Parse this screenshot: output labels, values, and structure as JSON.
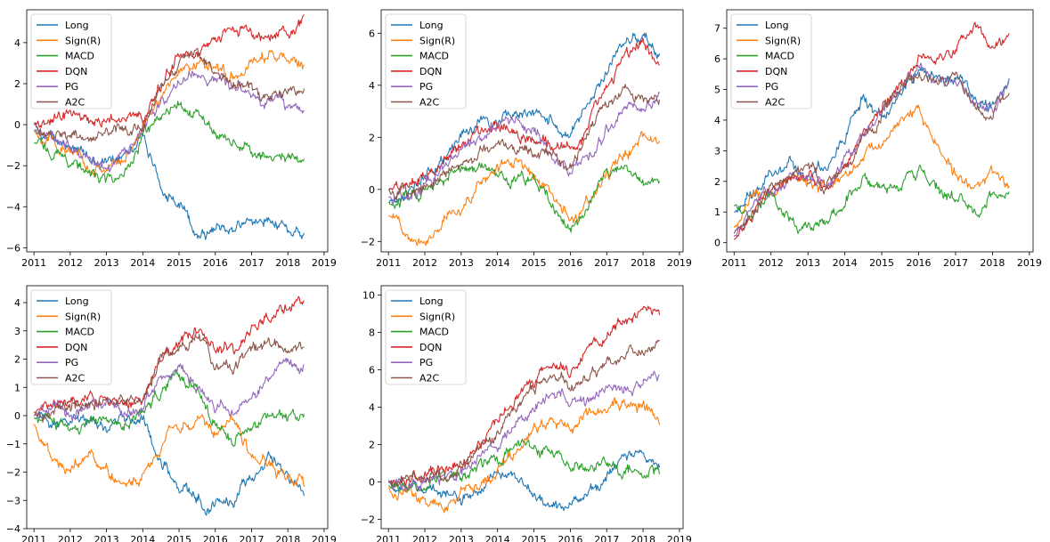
{
  "series_names": [
    "Long",
    "Sign(R)",
    "MACD",
    "DQN",
    "PG",
    "A2C"
  ],
  "colors": {
    "Long": "#1f77b4",
    "Sign(R)": "#ff7f0e",
    "MACD": "#2ca02c",
    "DQN": "#d62728",
    "PG": "#9467bd",
    "A2C": "#8c564b"
  },
  "chart_data": [
    {
      "type": "line",
      "title": "",
      "x": [
        2011.0,
        2011.5,
        2012.0,
        2012.5,
        2013.0,
        2013.5,
        2014.0,
        2014.5,
        2015.0,
        2015.5,
        2016.0,
        2016.5,
        2017.0,
        2017.5,
        2018.0,
        2018.45
      ],
      "xticks": [
        2011,
        2012,
        2013,
        2014,
        2015,
        2016,
        2017,
        2018,
        2019
      ],
      "xlim": [
        2010.8,
        2019.1
      ],
      "ylim": [
        -6.2,
        5.6
      ],
      "yticks": [
        -6,
        -4,
        -2,
        0,
        2,
        4
      ],
      "series": [
        {
          "name": "Long",
          "values": [
            -0.3,
            -0.6,
            -1.0,
            -1.6,
            -1.9,
            -1.2,
            -0.5,
            -3.0,
            -4.0,
            -5.2,
            -5.1,
            -5.0,
            -4.8,
            -4.5,
            -5.0,
            -5.5
          ]
        },
        {
          "name": "Sign(R)",
          "values": [
            -0.3,
            -0.8,
            -1.4,
            -1.9,
            -2.1,
            -1.7,
            0.0,
            1.5,
            2.6,
            3.0,
            2.8,
            2.5,
            3.0,
            3.4,
            3.2,
            2.7
          ]
        },
        {
          "name": "MACD",
          "values": [
            -0.9,
            -1.2,
            -1.8,
            -2.3,
            -2.8,
            -2.5,
            -0.7,
            0.2,
            0.8,
            0.6,
            -0.3,
            -0.8,
            -1.2,
            -1.5,
            -1.6,
            -1.5
          ]
        },
        {
          "name": "DQN",
          "values": [
            0.0,
            0.2,
            0.5,
            0.3,
            0.3,
            0.5,
            0.5,
            1.8,
            3.4,
            3.5,
            4.0,
            4.6,
            4.5,
            4.2,
            4.6,
            5.2
          ]
        },
        {
          "name": "PG",
          "values": [
            0.1,
            -0.5,
            -1.1,
            -1.7,
            -2.1,
            -1.5,
            -0.4,
            1.2,
            2.1,
            2.4,
            2.0,
            1.8,
            1.5,
            1.3,
            1.0,
            0.5
          ]
        },
        {
          "name": "A2C",
          "values": [
            0.0,
            -0.3,
            -0.4,
            -0.7,
            -0.4,
            -0.2,
            -0.1,
            1.5,
            3.0,
            3.4,
            2.6,
            2.0,
            1.8,
            1.6,
            1.3,
            1.6
          ]
        }
      ]
    },
    {
      "type": "line",
      "title": "",
      "x": [
        2011.0,
        2011.5,
        2012.0,
        2012.5,
        2013.0,
        2013.5,
        2014.0,
        2014.5,
        2015.0,
        2015.5,
        2016.0,
        2016.5,
        2017.0,
        2017.5,
        2018.0,
        2018.45
      ],
      "xticks": [
        2011,
        2012,
        2013,
        2014,
        2015,
        2016,
        2017,
        2018,
        2019
      ],
      "xlim": [
        2010.8,
        2019.1
      ],
      "ylim": [
        -2.4,
        6.9
      ],
      "yticks": [
        -2,
        0,
        2,
        4,
        6
      ],
      "series": [
        {
          "name": "Long",
          "values": [
            -0.5,
            -0.1,
            0.6,
            1.2,
            2.0,
            2.5,
            2.6,
            2.9,
            2.8,
            2.6,
            2.0,
            3.2,
            4.5,
            5.6,
            6.0,
            5.2
          ]
        },
        {
          "name": "Sign(R)",
          "values": [
            -1.0,
            -1.5,
            -1.9,
            -1.2,
            -0.6,
            0.2,
            0.8,
            1.1,
            0.5,
            -0.3,
            -1.3,
            -0.5,
            0.5,
            1.4,
            2.0,
            1.7
          ]
        },
        {
          "name": "MACD",
          "values": [
            -0.5,
            -0.3,
            -0.1,
            0.3,
            0.6,
            0.9,
            0.7,
            0.3,
            0.3,
            -0.5,
            -1.6,
            -0.5,
            0.5,
            0.6,
            0.2,
            0.3
          ]
        },
        {
          "name": "DQN",
          "values": [
            0.0,
            0.2,
            0.5,
            1.0,
            1.6,
            2.0,
            2.3,
            2.2,
            2.0,
            1.8,
            1.3,
            2.6,
            4.0,
            5.2,
            5.5,
            4.6
          ]
        },
        {
          "name": "PG",
          "values": [
            -0.3,
            -0.2,
            0.3,
            0.9,
            1.4,
            2.0,
            2.5,
            2.6,
            2.3,
            1.3,
            0.6,
            1.3,
            2.2,
            2.8,
            3.1,
            3.3
          ]
        },
        {
          "name": "A2C",
          "values": [
            0.0,
            -0.3,
            0.0,
            0.5,
            1.0,
            1.5,
            1.8,
            1.6,
            1.5,
            1.3,
            0.8,
            2.2,
            3.4,
            3.8,
            3.3,
            3.6
          ]
        }
      ]
    },
    {
      "type": "line",
      "title": "",
      "x": [
        2011.0,
        2011.5,
        2012.0,
        2012.5,
        2013.0,
        2013.5,
        2014.0,
        2014.5,
        2015.0,
        2015.5,
        2016.0,
        2016.5,
        2017.0,
        2017.5,
        2018.0,
        2018.45
      ],
      "xticks": [
        2011,
        2012,
        2013,
        2014,
        2015,
        2016,
        2017,
        2018,
        2019
      ],
      "xlim": [
        2010.8,
        2019.1
      ],
      "ylim": [
        -0.3,
        7.6
      ],
      "yticks": [
        0,
        1,
        2,
        3,
        4,
        5,
        6,
        7
      ],
      "series": [
        {
          "name": "Long",
          "values": [
            1.0,
            1.5,
            2.2,
            2.5,
            2.1,
            2.6,
            3.5,
            4.8,
            4.0,
            4.8,
            5.6,
            5.3,
            5.5,
            4.8,
            4.5,
            5.3
          ]
        },
        {
          "name": "Sign(R)",
          "values": [
            0.5,
            1.3,
            1.8,
            2.2,
            2.0,
            1.6,
            2.0,
            2.8,
            3.3,
            3.9,
            4.3,
            3.0,
            2.2,
            1.8,
            2.3,
            1.8
          ]
        },
        {
          "name": "MACD",
          "values": [
            1.2,
            1.0,
            1.6,
            0.8,
            0.5,
            0.7,
            1.3,
            2.2,
            1.8,
            2.0,
            2.5,
            1.8,
            1.5,
            1.2,
            1.6,
            1.7
          ]
        },
        {
          "name": "DQN",
          "values": [
            0.1,
            0.9,
            1.6,
            2.1,
            2.2,
            1.9,
            2.5,
            3.5,
            4.4,
            5.2,
            5.9,
            6.2,
            6.3,
            7.0,
            6.1,
            6.7
          ]
        },
        {
          "name": "PG",
          "values": [
            0.2,
            1.0,
            1.8,
            2.2,
            2.0,
            1.9,
            2.6,
            3.5,
            4.2,
            5.0,
            5.8,
            5.2,
            5.2,
            4.5,
            4.3,
            5.2
          ]
        },
        {
          "name": "A2C",
          "values": [
            0.3,
            1.0,
            1.7,
            2.2,
            2.3,
            1.8,
            2.5,
            3.4,
            4.3,
            5.0,
            5.7,
            5.3,
            5.4,
            4.4,
            4.2,
            5.1
          ]
        }
      ]
    },
    {
      "type": "line",
      "title": "",
      "x": [
        2011.0,
        2011.5,
        2012.0,
        2012.5,
        2013.0,
        2013.5,
        2014.0,
        2014.5,
        2015.0,
        2015.5,
        2016.0,
        2016.5,
        2017.0,
        2017.5,
        2018.0,
        2018.45
      ],
      "xticks": [
        2011,
        2012,
        2013,
        2014,
        2015,
        2016,
        2017,
        2018,
        2019
      ],
      "xlim": [
        2010.8,
        2019.1
      ],
      "ylim": [
        -4.0,
        4.6
      ],
      "yticks": [
        -4,
        -3,
        -2,
        -1,
        0,
        1,
        2,
        3,
        4
      ],
      "series": [
        {
          "name": "Long",
          "values": [
            0.0,
            -0.3,
            -0.3,
            -0.3,
            -0.4,
            -0.2,
            0.0,
            -1.5,
            -2.5,
            -2.9,
            -3.3,
            -3.0,
            -2.2,
            -1.2,
            -2.2,
            -2.7
          ]
        },
        {
          "name": "Sign(R)",
          "values": [
            -0.3,
            -1.5,
            -2.2,
            -1.4,
            -1.9,
            -2.4,
            -2.1,
            -1.0,
            -0.4,
            -0.1,
            -0.6,
            0.0,
            -1.4,
            -1.6,
            -2.3,
            -2.4
          ]
        },
        {
          "name": "MACD",
          "values": [
            -0.1,
            -0.3,
            -0.6,
            -0.3,
            -0.2,
            -0.1,
            0.0,
            1.0,
            1.5,
            1.1,
            -0.2,
            -0.9,
            -0.4,
            0.1,
            0.0,
            0.1
          ]
        },
        {
          "name": "DQN",
          "values": [
            0.0,
            0.2,
            0.4,
            0.3,
            0.9,
            0.5,
            0.6,
            2.0,
            2.7,
            3.0,
            2.5,
            2.3,
            3.0,
            3.5,
            3.9,
            3.9
          ]
        },
        {
          "name": "PG",
          "values": [
            0.0,
            0.2,
            0.0,
            0.2,
            0.4,
            0.1,
            0.3,
            1.2,
            1.8,
            1.3,
            0.3,
            0.2,
            0.9,
            1.5,
            1.7,
            1.8
          ]
        },
        {
          "name": "A2C",
          "values": [
            0.1,
            0.2,
            0.1,
            0.4,
            0.3,
            0.4,
            0.6,
            2.0,
            2.6,
            3.0,
            2.0,
            1.6,
            2.2,
            2.6,
            2.4,
            2.4
          ]
        }
      ]
    },
    {
      "type": "line",
      "title": "",
      "x": [
        2011.0,
        2011.5,
        2012.0,
        2012.5,
        2013.0,
        2013.5,
        2014.0,
        2014.5,
        2015.0,
        2015.5,
        2016.0,
        2016.5,
        2017.0,
        2017.5,
        2018.0,
        2018.45
      ],
      "xticks": [
        2011,
        2012,
        2013,
        2014,
        2015,
        2016,
        2017,
        2018,
        2019
      ],
      "xlim": [
        2010.8,
        2019.1
      ],
      "ylim": [
        -2.5,
        10.5
      ],
      "yticks": [
        -2,
        0,
        2,
        4,
        6,
        8,
        10
      ],
      "series": [
        {
          "name": "Long",
          "values": [
            0.0,
            -0.3,
            -0.4,
            -0.6,
            -1.0,
            -0.3,
            0.4,
            0.1,
            -0.7,
            -1.6,
            -1.0,
            -0.5,
            0.4,
            1.2,
            1.5,
            0.7
          ]
        },
        {
          "name": "Sign(R)",
          "values": [
            -0.3,
            -0.7,
            -1.1,
            -1.5,
            -0.6,
            -0.2,
            0.4,
            1.5,
            2.8,
            3.4,
            3.0,
            3.4,
            3.8,
            4.2,
            4.0,
            3.5
          ]
        },
        {
          "name": "MACD",
          "values": [
            -0.2,
            -0.5,
            -0.3,
            0.1,
            0.3,
            0.8,
            1.3,
            2.2,
            1.8,
            1.5,
            1.1,
            0.5,
            0.9,
            0.7,
            0.5,
            0.4
          ]
        },
        {
          "name": "DQN",
          "values": [
            0.0,
            0.3,
            0.6,
            0.5,
            1.2,
            2.2,
            3.2,
            4.5,
            5.5,
            6.2,
            6.0,
            6.8,
            7.8,
            8.6,
            9.3,
            9.2
          ]
        },
        {
          "name": "PG",
          "values": [
            0.1,
            -0.2,
            0.2,
            0.0,
            0.6,
            1.2,
            2.0,
            3.2,
            4.2,
            4.6,
            4.4,
            4.5,
            5.0,
            5.3,
            5.4,
            5.5
          ]
        },
        {
          "name": "A2C",
          "values": [
            0.0,
            0.2,
            0.4,
            0.3,
            0.9,
            1.8,
            2.8,
            4.0,
            5.2,
            5.6,
            5.2,
            5.6,
            6.4,
            7.0,
            7.0,
            7.6
          ]
        }
      ]
    }
  ]
}
